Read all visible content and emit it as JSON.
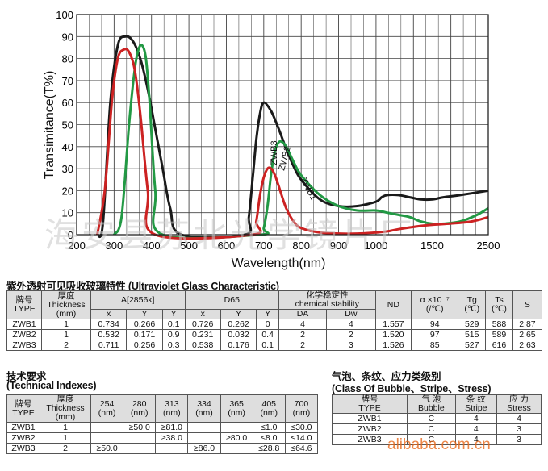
{
  "chart_data": {
    "type": "line",
    "ylabel": "Transimitance(T%)",
    "xlabel": "Wavelength(nm)",
    "ylim": [
      0,
      100
    ],
    "y_ticks": [
      "0",
      "10",
      "20",
      "30",
      "40",
      "50",
      "60",
      "70",
      "80",
      "90",
      "100"
    ],
    "x_ticks": [
      "200",
      "300",
      "400",
      "500",
      "600",
      "700",
      "800",
      "900",
      "1000",
      "1500",
      "2500"
    ],
    "grid": true,
    "series": [
      {
        "name": "ZWB3",
        "color": "#1a1a1a",
        "x": [
          255,
          270,
          290,
          310,
          330,
          350,
          370,
          390,
          410,
          430,
          450,
          480,
          650,
          660,
          670,
          680,
          690,
          700,
          720,
          740,
          760,
          780,
          800,
          850,
          900,
          950,
          1000,
          1050,
          1100,
          1200,
          1300,
          1400,
          1500,
          1700,
          2000,
          2500
        ],
        "y": [
          0,
          5,
          60,
          86,
          90,
          88,
          80,
          66,
          48,
          30,
          12,
          0,
          0,
          8,
          25,
          43,
          55,
          60,
          56,
          48,
          39,
          31,
          25,
          16,
          13,
          13,
          15,
          17,
          18,
          18,
          17,
          16,
          16,
          17,
          18,
          20
        ]
      },
      {
        "name": "ZWB2",
        "color": "#229944",
        "x": [
          300,
          320,
          340,
          355,
          365,
          375,
          385,
          395,
          410,
          430,
          690,
          700,
          710,
          720,
          730,
          740,
          750,
          760,
          780,
          800,
          850,
          900,
          950,
          1000,
          1100,
          1200,
          1300,
          1400,
          1500,
          1700,
          2000,
          2300,
          2500
        ],
        "y": [
          0,
          8,
          50,
          75,
          84,
          86,
          80,
          60,
          20,
          0,
          0,
          3,
          13,
          28,
          38,
          42,
          42,
          40,
          33,
          27,
          18,
          13,
          11,
          11,
          10,
          9,
          8,
          6,
          5,
          5,
          6,
          9,
          12
        ]
      },
      {
        "name": "ZWB1",
        "color": "#cc2222",
        "x": [
          255,
          275,
          295,
          310,
          325,
          340,
          355,
          370,
          390,
          410,
          670,
          680,
          690,
          700,
          710,
          720,
          730,
          740,
          760,
          780,
          800,
          850,
          900,
          950,
          1000,
          1100,
          1200,
          1400,
          1500,
          1800,
          2200,
          2500
        ],
        "y": [
          0,
          20,
          62,
          80,
          84,
          83,
          75,
          55,
          20,
          0,
          0,
          6,
          18,
          26,
          30,
          30,
          27,
          22,
          12,
          6,
          3,
          1,
          0.5,
          0.5,
          1,
          1.5,
          2.5,
          4,
          4.5,
          5,
          6,
          8
        ]
      }
    ]
  },
  "table1": {
    "title": "紫外透射可见吸收玻璃特性 (Ultraviolet Glass Characteristic)",
    "h_type": "牌号\nTYPE",
    "h_thickness": "厚度\nThickness\n(mm)",
    "h_a": "A[2856k]",
    "h_d65": "D65",
    "h_chem": "化学稳定性\nchemical stability",
    "h_nd": "ND",
    "h_alpha": "α ×10⁻⁷\n(/℃)",
    "h_tg": "Tg\n(℃)",
    "h_ts": "Ts\n(℃)",
    "h_s": "S",
    "sub": [
      "x",
      "Y",
      "Y",
      "x",
      "Y",
      "Y",
      "DA",
      "Dw"
    ],
    "rows": [
      [
        "ZWB1",
        "1",
        "0.734",
        "0.266",
        "0.1",
        "0.726",
        "0.262",
        "0",
        "4",
        "4",
        "1.557",
        "94",
        "529",
        "588",
        "2.87"
      ],
      [
        "ZWB2",
        "1",
        "0.532",
        "0.171",
        "0.9",
        "0.231",
        "0.032",
        "0.4",
        "2",
        "2",
        "1.520",
        "97",
        "515",
        "589",
        "2.65"
      ],
      [
        "ZWB3",
        "2",
        "0.711",
        "0.256",
        "0.3",
        "0.538",
        "0.176",
        "0.1",
        "2",
        "3",
        "1.526",
        "85",
        "527",
        "616",
        "2.63"
      ]
    ]
  },
  "table2": {
    "title1": "技术要求",
    "title2": "(Technical Indexes)",
    "h_type": "牌号\nTYPE",
    "h_thickness": "厚度\nThickness\n(mm)",
    "wl": [
      "254\n(nm)",
      "280\n(nm)",
      "313\n(nm)",
      "334\n(nm)",
      "365\n(nm)",
      "405\n(nm)",
      "700\n(nm)"
    ],
    "rows": [
      [
        "ZWB1",
        "1",
        "",
        "≥50.0",
        "≥81.0",
        "",
        "",
        "≤1.0",
        "≤30.0"
      ],
      [
        "ZWB2",
        "1",
        "",
        "",
        "≥38.0",
        "",
        "≥80.0",
        "≤8.0",
        "≤14.0"
      ],
      [
        "ZWB3",
        "2",
        "≥50.0",
        "",
        "",
        "≥86.0",
        "",
        "≤28.8",
        "≤64.6"
      ]
    ]
  },
  "table3": {
    "title1": "气泡、条纹、应力类级别",
    "title2": "(Class Of Bubble、Stripe、Stress)",
    "h_type": "牌号\nTYPE",
    "h_bubble": "气 泡\nBubble",
    "h_stripe": "条 纹\nStripe",
    "h_stress": "应 力\nStress",
    "rows": [
      [
        "ZWB1",
        "C",
        "4",
        "4"
      ],
      [
        "ZWB2",
        "C",
        "4",
        "3"
      ],
      [
        "ZWB3",
        "C",
        "4",
        "3"
      ]
    ]
  },
  "watermark": {
    "text": "海安县苏北光学镜片厂",
    "alibaba": "alibaba.com.cn",
    "alibaba_color": "#e86a1c"
  }
}
